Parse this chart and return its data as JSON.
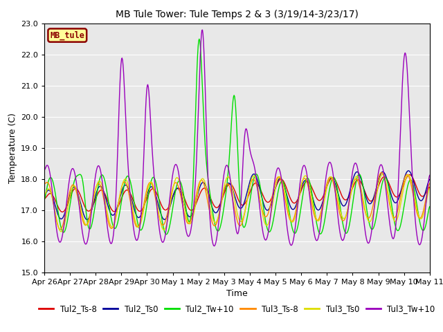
{
  "title": "MB Tule Tower: Tule Temps 2 & 3 (3/19/14-3/23/17)",
  "xlabel": "Time",
  "ylabel": "Temperature (C)",
  "ylim": [
    15.0,
    23.0
  ],
  "yticks": [
    15.0,
    16.0,
    17.0,
    18.0,
    19.0,
    20.0,
    21.0,
    22.0,
    23.0
  ],
  "xtick_labels": [
    "Apr 26",
    "Apr 27",
    "Apr 28",
    "Apr 29",
    "Apr 30",
    "May 1",
    "May 2",
    "May 3",
    "May 4",
    "May 5",
    "May 6",
    "May 7",
    "May 8",
    "May 9",
    "May 10",
    "May 11"
  ],
  "legend_labels": [
    "Tul2_Ts-8",
    "Tul2_Ts0",
    "Tul2_Tw+10",
    "Tul3_Ts-8",
    "Tul3_Ts0",
    "Tul3_Tw+10"
  ],
  "colors": [
    "#dd0000",
    "#000099",
    "#00dd00",
    "#ff8800",
    "#dddd00",
    "#9900bb"
  ],
  "inset_label": "MB_tule",
  "inset_color_bg": "#ffff99",
  "inset_color_border": "#8b0000",
  "inset_color_text": "#8b0000",
  "plot_bg": "#e8e8e8",
  "fig_bg": "#ffffff"
}
